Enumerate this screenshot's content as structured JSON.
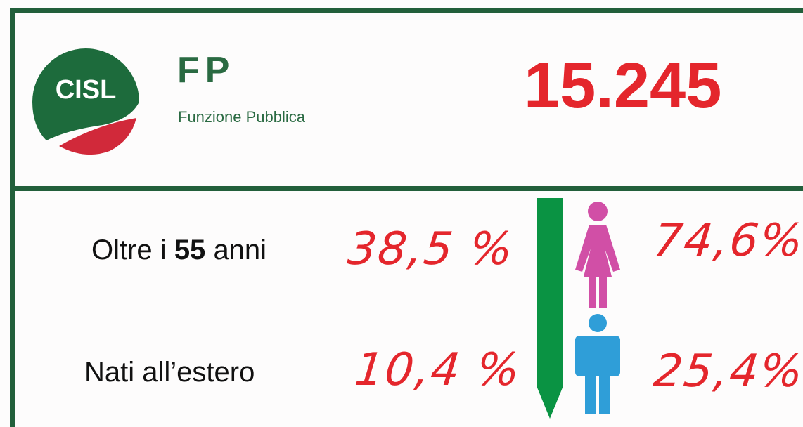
{
  "header": {
    "logo_text": "CISL",
    "title": "FP",
    "subtitle": "Funzione Pubblica",
    "total": "15.245"
  },
  "rows": [
    {
      "label_start": "Oltre i",
      "label_bold": "55",
      "label_end": "anni",
      "value": "38,5 %",
      "gender_value": "74,6%"
    },
    {
      "label": "Nati all’estero",
      "value": "10,4 %",
      "gender_value": "25,4%"
    }
  ]
}
